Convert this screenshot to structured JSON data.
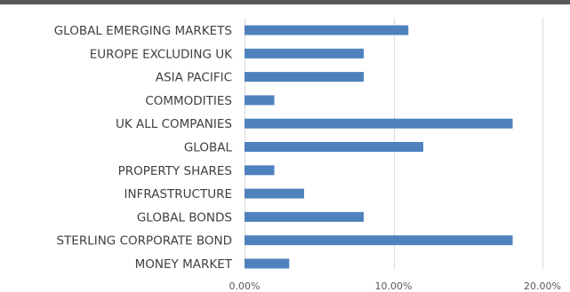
{
  "colors": {
    "bar": "#4f81bd",
    "gridline": "#d9d9d9",
    "axis_text": "#595959",
    "category_text": "#404040",
    "top_band": "#595959"
  },
  "chart_data": {
    "type": "bar",
    "orientation": "horizontal",
    "categories": [
      "GLOBAL EMERGING MARKETS",
      "EUROPE EXCLUDING UK",
      "ASIA PACIFIC",
      "COMMODITIES",
      "UK ALL COMPANIES",
      "GLOBAL",
      "PROPERTY SHARES",
      "INFRASTRUCTURE",
      "GLOBAL BONDS",
      "STERLING CORPORATE BOND",
      "MONEY MARKET"
    ],
    "values": [
      11,
      8,
      8,
      2,
      18,
      12,
      2,
      4,
      8,
      18,
      3
    ],
    "value_unit": "percent",
    "xlim": [
      0,
      20
    ],
    "xticks": [
      0,
      10,
      20
    ],
    "xtick_labels": [
      "0.00%",
      "10.00%",
      "20.00%"
    ],
    "grid": "vertical",
    "legend": "none",
    "title": "",
    "xlabel": "",
    "ylabel": ""
  }
}
